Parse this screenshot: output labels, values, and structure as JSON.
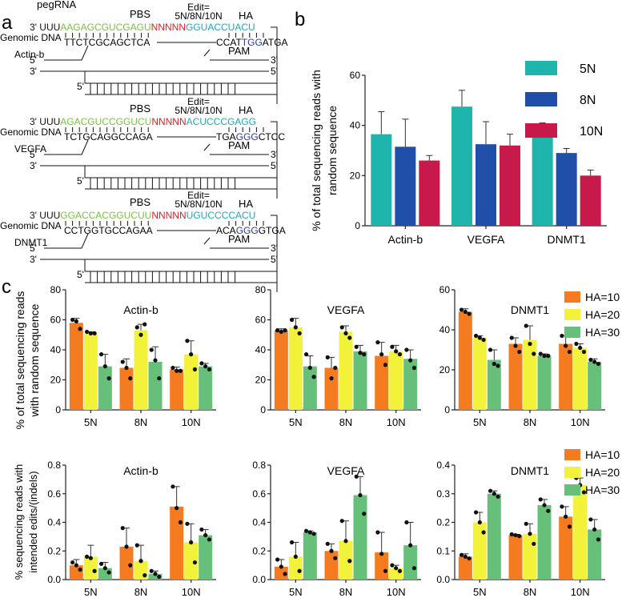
{
  "colors": {
    "seq_green": "#7ac143",
    "seq_red": "#e31e24",
    "seq_teal": "#1fa8b8",
    "seq_blue": "#2a3a9e",
    "bar_teal": "#1fb5ad",
    "bar_blue": "#1f4fa8",
    "bar_red": "#c8194b",
    "bar_orange": "#f47b20",
    "bar_yellow": "#f2f23a",
    "bar_green": "#66c07a"
  },
  "panel_labels": {
    "a": "a",
    "b": "b",
    "c": "c"
  },
  "schematic": {
    "pegrna_label": "pegRNA",
    "genomic_dna_label": "Genomic DNA",
    "pbs_label": "PBS",
    "edit_label_line1": "Edit=",
    "edit_label_line2": "5N/8N/10N",
    "ha_label": "HA",
    "pam_label": "PAM",
    "prime3": "3'",
    "prime5": "5'",
    "constructs": [
      {
        "gene": "Actin-b",
        "rna_prefix": "UUU",
        "pbs_seq": "AAGAGCGUCGAGU",
        "edit_seq": "NNNNN",
        "ha_seq": "GGUACCUACU",
        "dna_left": "TTCTCGCAGCTCA",
        "dna_right_a": "CCAT",
        "dna_pam": "TGG",
        "dna_right_b": "ATGA"
      },
      {
        "gene": "VEGFA",
        "rna_prefix": "UUU",
        "pbs_seq": "AGACGUCCGGUCU",
        "edit_seq": "NNNNN",
        "ha_seq": "ACUCCCGAGG",
        "dna_left": "TCTGCAGGCCAGA",
        "dna_right_a": "TGA",
        "dna_pam": "GGG",
        "dna_right_b": "CTCC"
      },
      {
        "gene": "DNMT1",
        "rna_prefix": "UUU",
        "pbs_seq": "GGACCACGGUCUU",
        "edit_seq": "NNNNN",
        "ha_seq": "UGUCCCCACU",
        "dna_left": "CCTGGTGCCAGAA",
        "dna_right_a": "ACA",
        "dna_pam": "GGG",
        "dna_right_b": "GTGA"
      }
    ]
  },
  "chart_data": [
    {
      "id": "b",
      "type": "bar",
      "title": "",
      "ylabel": "% of total sequencing reads with random sequence",
      "ylabel_line1": "% of total sequencing reads with",
      "ylabel_line2": "random sequence",
      "xlabel": "",
      "ylim": [
        0,
        60
      ],
      "yticks": [
        "0",
        "20",
        "40",
        "60"
      ],
      "categories": [
        "Actin-b",
        "VEGFA",
        "DNMT1"
      ],
      "series": [
        {
          "name": "5N",
          "values": [
            36.5,
            47.5,
            38.5
          ],
          "errors": [
            9,
            6.5,
            2.5
          ]
        },
        {
          "name": "8N",
          "values": [
            31.5,
            32.5,
            29
          ],
          "errors": [
            11,
            9,
            1.8
          ]
        },
        {
          "name": "10N",
          "values": [
            26,
            32,
            20
          ],
          "errors": [
            2,
            4.5,
            2.2
          ]
        }
      ],
      "legend": "right"
    },
    {
      "id": "c1",
      "type": "bar",
      "title": "Actin-b",
      "ylim": [
        0,
        80
      ],
      "yticks": [
        "0",
        "20",
        "40",
        "60",
        "80"
      ],
      "categories": [
        "5N",
        "8N",
        "10N"
      ],
      "series": [
        {
          "name": "HA=10",
          "values": [
            58,
            28,
            27
          ],
          "errors": [
            3,
            6,
            1.5
          ],
          "points": [
            [
              60,
              59,
              54
            ],
            [
              32,
              28,
              21
            ],
            [
              28,
              26,
              26
            ]
          ]
        },
        {
          "name": "HA=20",
          "values": [
            51,
            53,
            37
          ],
          "errors": [
            1,
            4,
            9
          ],
          "points": [
            [
              52,
              51,
              51
            ],
            [
              55,
              50,
              57
            ],
            [
              46,
              37,
              27
            ]
          ]
        },
        {
          "name": "HA=30",
          "values": [
            29,
            32,
            29
          ],
          "errors": [
            8,
            10,
            2
          ],
          "points": [
            [
              37,
              29,
              21
            ],
            [
              40,
              33,
              21
            ],
            [
              31,
              29,
              27
            ]
          ]
        }
      ]
    },
    {
      "id": "c2",
      "type": "bar",
      "title": "VEGFA",
      "ylim": [
        0,
        80
      ],
      "yticks": [
        "0",
        "20",
        "40",
        "60",
        "80"
      ],
      "categories": [
        "5N",
        "8N",
        "10N"
      ],
      "series": [
        {
          "name": "HA=10",
          "values": [
            53,
            28,
            36
          ],
          "errors": [
            1,
            7,
            9
          ],
          "points": [
            [
              53,
              52,
              53
            ],
            [
              35,
              21,
              28
            ],
            [
              45,
              37,
              30
            ]
          ]
        },
        {
          "name": "HA=20",
          "values": [
            55,
            52,
            39
          ],
          "errors": [
            6,
            4,
            4
          ],
          "points": [
            [
              60,
              55,
              51
            ],
            [
              55,
              51,
              48
            ],
            [
              42,
              39,
              37
            ]
          ]
        },
        {
          "name": "HA=30",
          "values": [
            29,
            39,
            34
          ],
          "errors": [
            7,
            4,
            6
          ],
          "points": [
            [
              37,
              28,
              22
            ],
            [
              42,
              38,
              37
            ],
            [
              40,
              33,
              28
            ]
          ]
        }
      ]
    },
    {
      "id": "c3",
      "type": "bar",
      "title": "DNMT1",
      "ylim": [
        0,
        60
      ],
      "yticks": [
        "0",
        "20",
        "40",
        "60"
      ],
      "categories": [
        "5N",
        "8N",
        "10N"
      ],
      "series": [
        {
          "name": "HA=10",
          "values": [
            49,
            33,
            33
          ],
          "errors": [
            1.5,
            3,
            4
          ],
          "points": [
            [
              50,
              49,
              48
            ],
            [
              36,
              32,
              29
            ],
            [
              37,
              32,
              29
            ]
          ]
        },
        {
          "name": "HA=20",
          "values": [
            36,
            35,
            31
          ],
          "errors": [
            1,
            7,
            2
          ],
          "points": [
            [
              37,
              36,
              35
            ],
            [
              42,
              33,
              28
            ],
            [
              33,
              31,
              29
            ]
          ]
        },
        {
          "name": "HA=30",
          "values": [
            25,
            27,
            24
          ],
          "errors": [
            5,
            1,
            1.5
          ],
          "points": [
            [
              30,
              23,
              22
            ],
            [
              28,
              27,
              27
            ],
            [
              25,
              24,
              23
            ]
          ]
        }
      ],
      "legend": [
        "HA=10",
        "HA=20",
        "HA=30"
      ]
    },
    {
      "id": "c4",
      "type": "bar",
      "title": "Actin-b",
      "ylabel": "% sequencing reads with intended edits/indels",
      "ylabel_line1": "% sequencing reads with",
      "ylabel_line2": "intended edits/(indels)",
      "ylim": [
        0,
        0.8
      ],
      "yticks": [
        "0.0",
        "0.2",
        "0.4",
        "0.6",
        "0.8"
      ],
      "categories": [
        "5N",
        "8N",
        "10N"
      ],
      "series": [
        {
          "name": "HA=10",
          "values": [
            0.1,
            0.23,
            0.51
          ],
          "errors": [
            0.04,
            0.13,
            0.14
          ],
          "points": [
            [
              0.12,
              0.1,
              0.07
            ],
            [
              0.36,
              0.23,
              0.1
            ],
            [
              0.65,
              0.5,
              0.4
            ]
          ]
        },
        {
          "name": "HA=20",
          "values": [
            0.16,
            0.13,
            0.26
          ],
          "errors": [
            0.08,
            0.11,
            0.13
          ],
          "points": [
            [
              0.16,
              0.15,
              0.06
            ],
            [
              0.24,
              0.13,
              0.03
            ],
            [
              0.39,
              0.26,
              0.12
            ]
          ]
        },
        {
          "name": "HA=30",
          "values": [
            0.08,
            0.04,
            0.31
          ],
          "errors": [
            0.04,
            0.02,
            0.04
          ],
          "points": [
            [
              0.11,
              0.08,
              0.05
            ],
            [
              0.06,
              0.04,
              0.02
            ],
            [
              0.35,
              0.31,
              0.28
            ]
          ]
        }
      ]
    },
    {
      "id": "c5",
      "type": "bar",
      "title": "VEGFA",
      "ylim": [
        0,
        0.8
      ],
      "yticks": [
        "0.0",
        "0.2",
        "0.4",
        "0.6",
        "0.8"
      ],
      "categories": [
        "5N",
        "8N",
        "10N"
      ],
      "series": [
        {
          "name": "HA=10",
          "values": [
            0.09,
            0.2,
            0.19
          ],
          "errors": [
            0.05,
            0.05,
            0.14
          ],
          "points": [
            [
              0.14,
              0.09,
              0.04
            ],
            [
              0.25,
              0.2,
              0.15
            ],
            [
              0.33,
              0.18,
              0.06
            ]
          ]
        },
        {
          "name": "HA=20",
          "values": [
            0.16,
            0.27,
            0.08
          ],
          "errors": [
            0.1,
            0.14,
            0.02
          ],
          "points": [
            [
              0.26,
              0.16,
              0.06
            ],
            [
              0.41,
              0.27,
              0.13
            ],
            [
              0.1,
              0.08,
              0.06
            ]
          ]
        },
        {
          "name": "HA=30",
          "values": [
            0.33,
            0.59,
            0.24
          ],
          "errors": [
            0.01,
            0.13,
            0.16
          ],
          "points": [
            [
              0.34,
              0.33,
              0.32
            ],
            [
              0.72,
              0.59,
              0.46
            ],
            [
              0.4,
              0.24,
              0.08
            ]
          ]
        }
      ]
    },
    {
      "id": "c6",
      "type": "bar",
      "title": "DNMT1",
      "ylim": [
        0,
        0.4
      ],
      "yticks": [
        "0.0",
        "0.1",
        "0.2",
        "0.3",
        "0.4"
      ],
      "categories": [
        "5N",
        "8N",
        "10N"
      ],
      "series": [
        {
          "name": "HA=10",
          "values": [
            0.08,
            0.155,
            0.22
          ],
          "errors": [
            0.01,
            0.003,
            0.035
          ],
          "points": [
            [
              0.086,
              0.08,
              0.074
            ],
            [
              0.158,
              0.155,
              0.152
            ],
            [
              0.255,
              0.22,
              0.185
            ]
          ]
        },
        {
          "name": "HA=20",
          "values": [
            0.2,
            0.16,
            0.33
          ],
          "errors": [
            0.035,
            0.035,
            0.025
          ],
          "points": [
            [
              0.235,
              0.2,
              0.165
            ],
            [
              0.195,
              0.16,
              0.125
            ],
            [
              0.355,
              0.33,
              0.305
            ]
          ]
        },
        {
          "name": "HA=30",
          "values": [
            0.3,
            0.26,
            0.175
          ],
          "errors": [
            0.01,
            0.02,
            0.035
          ],
          "points": [
            [
              0.31,
              0.3,
              0.29
            ],
            [
              0.28,
              0.26,
              0.24
            ],
            [
              0.21,
              0.175,
              0.14
            ]
          ]
        }
      ],
      "legend": [
        "HA=10",
        "HA=20",
        "HA=30"
      ]
    }
  ],
  "shared_ylabel_c_top_line1": "% of total sequencing reads",
  "shared_ylabel_c_top_line2": "with random sequence"
}
